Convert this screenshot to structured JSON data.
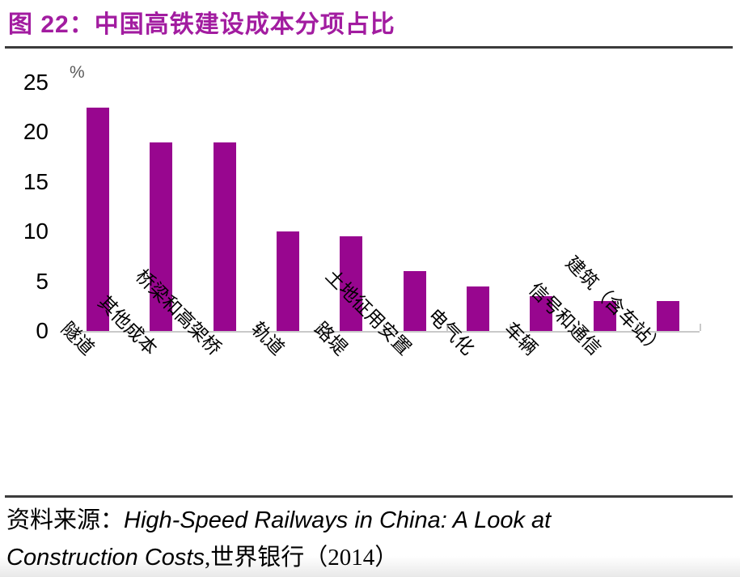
{
  "figure": {
    "title": "图 22：中国高铁建设成本分项占比"
  },
  "chart_data": {
    "type": "bar",
    "title": "中国高铁建设成本分项占比",
    "unit_label": "%",
    "categories": [
      "隧道",
      "其他成本",
      "桥梁和高架桥",
      "轨道",
      "路堤",
      "土地征用安置",
      "电气化",
      "车辆",
      "信号和通信",
      "建筑（含车站）"
    ],
    "values": [
      22.5,
      19,
      19,
      10,
      9.5,
      6,
      4.5,
      3.5,
      3,
      3
    ],
    "xlabel": "",
    "ylabel": "%",
    "ylim": [
      0,
      25
    ],
    "yticks": [
      0,
      5,
      10,
      15,
      20,
      25
    ],
    "grid": false,
    "legend": false,
    "bar_color": "#98068F"
  },
  "source": {
    "prefix": "资料来源：",
    "work_title": "High-Speed Railways in China: A Look at Construction Costs",
    "suffix": ",世界银行（2014）"
  },
  "colors": {
    "title": "#A21CA0",
    "bar": "#98068F",
    "divider": "#3C3C3C",
    "axis": "#C9C9C9",
    "unit": "#595959"
  }
}
